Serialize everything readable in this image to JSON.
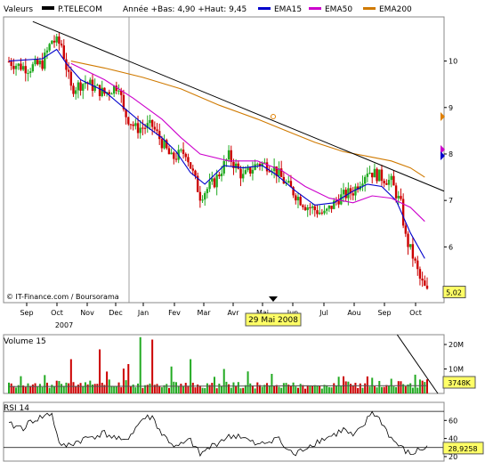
{
  "header": {
    "label": "Valeurs",
    "ticker": "P.TELECOM",
    "stats": "Année +Bas: 4,90 +Haut: 9,45",
    "legend": [
      {
        "name": "EMA15",
        "color": "#0000cc"
      },
      {
        "name": "EMA50",
        "color": "#cc00cc"
      },
      {
        "name": "EMA200",
        "color": "#d07a00"
      }
    ]
  },
  "colors": {
    "up": "#22aa22",
    "down": "#cc0000",
    "bg": "#ffffff",
    "grid": "#bbbbbb",
    "volume_avg": "#555555"
  },
  "credit": "© IT-Finance.com / Boursorama",
  "cursor_date": "29 Mai 2008",
  "chart_data": [
    {
      "type": "candlestick",
      "x_ticks": [
        "Sep",
        "Oct",
        "Nov",
        "Dec",
        "Jan",
        "Fev",
        "Mar",
        "Avr",
        "Mai",
        "Jun",
        "Jul",
        "Aou",
        "Sep",
        "Oct"
      ],
      "x_subtick": "2007",
      "y_ticks": [
        "10",
        "9",
        "8",
        "7",
        "6"
      ],
      "ylim": [
        4.8,
        10.95
      ],
      "last_price_label": "5,02",
      "price_path": [
        [
          0,
          9.99
        ],
        [
          4,
          9.9
        ],
        [
          8,
          9.85
        ],
        [
          14,
          9.95
        ],
        [
          18,
          10.45
        ],
        [
          22,
          10.35
        ],
        [
          26,
          9.4
        ],
        [
          32,
          9.55
        ],
        [
          40,
          9.3
        ],
        [
          46,
          9.5
        ],
        [
          48,
          8.9
        ],
        [
          53,
          8.55
        ],
        [
          60,
          8.6
        ],
        [
          68,
          7.9
        ],
        [
          74,
          8.05
        ],
        [
          80,
          7.1
        ],
        [
          86,
          7.4
        ],
        [
          92,
          7.95
        ],
        [
          98,
          7.5
        ],
        [
          104,
          7.8
        ],
        [
          110,
          7.75
        ],
        [
          116,
          7.35
        ],
        [
          124,
          6.9
        ],
        [
          132,
          6.7
        ],
        [
          138,
          7.05
        ],
        [
          144,
          7.2
        ],
        [
          150,
          7.65
        ],
        [
          156,
          7.5
        ],
        [
          160,
          7.4
        ],
        [
          164,
          6.9
        ],
        [
          166,
          6.2
        ],
        [
          169,
          5.8
        ],
        [
          172,
          5.3
        ],
        [
          175,
          5.02
        ]
      ],
      "series": [
        {
          "name": "EMA15",
          "color": "#0000cc",
          "points": [
            [
              0,
              10.0
            ],
            [
              14,
              10.05
            ],
            [
              20,
              10.25
            ],
            [
              24,
              9.95
            ],
            [
              30,
              9.6
            ],
            [
              40,
              9.35
            ],
            [
              48,
              9.0
            ],
            [
              56,
              8.65
            ],
            [
              64,
              8.35
            ],
            [
              70,
              8.05
            ],
            [
              76,
              7.6
            ],
            [
              82,
              7.35
            ],
            [
              90,
              7.75
            ],
            [
              98,
              7.7
            ],
            [
              106,
              7.75
            ],
            [
              112,
              7.55
            ],
            [
              120,
              7.2
            ],
            [
              128,
              6.9
            ],
            [
              136,
              6.95
            ],
            [
              144,
              7.2
            ],
            [
              150,
              7.35
            ],
            [
              156,
              7.3
            ],
            [
              162,
              7.0
            ],
            [
              168,
              6.3
            ],
            [
              174,
              5.75
            ]
          ]
        },
        {
          "name": "EMA50",
          "color": "#cc00cc",
          "points": [
            [
              26,
              9.95
            ],
            [
              40,
              9.6
            ],
            [
              52,
              9.2
            ],
            [
              64,
              8.75
            ],
            [
              72,
              8.35
            ],
            [
              80,
              8.0
            ],
            [
              92,
              7.85
            ],
            [
              104,
              7.85
            ],
            [
              114,
              7.65
            ],
            [
              124,
              7.3
            ],
            [
              134,
              7.05
            ],
            [
              144,
              6.95
            ],
            [
              152,
              7.1
            ],
            [
              160,
              7.05
            ],
            [
              168,
              6.85
            ],
            [
              174,
              6.55
            ]
          ]
        },
        {
          "name": "EMA200",
          "color": "#d07a00",
          "points": [
            [
              26,
              10.0
            ],
            [
              40,
              9.85
            ],
            [
              56,
              9.65
            ],
            [
              72,
              9.4
            ],
            [
              88,
              9.05
            ],
            [
              104,
              8.75
            ],
            [
              116,
              8.5
            ],
            [
              128,
              8.25
            ],
            [
              140,
              8.05
            ],
            [
              150,
              7.95
            ],
            [
              160,
              7.85
            ],
            [
              168,
              7.7
            ],
            [
              174,
              7.5
            ]
          ]
        }
      ],
      "trendline": [
        [
          10,
          10.85
        ],
        [
          180,
          7.2
        ]
      ]
    },
    {
      "type": "bar",
      "title": "Volume 15",
      "y_ticks": [
        "20M",
        "10M"
      ],
      "ylim": [
        0,
        24
      ],
      "last_value_label": "3748K",
      "profile": [
        [
          0,
          3
        ],
        [
          30,
          4
        ],
        [
          60,
          3.5
        ],
        [
          90,
          3.2
        ],
        [
          120,
          3
        ],
        [
          150,
          3.4
        ],
        [
          175,
          4
        ]
      ],
      "spikes": [
        [
          26,
          14
        ],
        [
          38,
          18
        ],
        [
          50,
          12
        ],
        [
          55,
          23
        ],
        [
          60,
          22
        ],
        [
          68,
          11
        ],
        [
          76,
          14
        ],
        [
          90,
          10
        ],
        [
          100,
          9
        ],
        [
          110,
          8
        ],
        [
          140,
          7
        ],
        [
          160,
          6
        ]
      ],
      "avg_path": [
        [
          0,
          2.8
        ],
        [
          175,
          3.2
        ]
      ],
      "trendline": [
        [
          158,
          24
        ],
        [
          175,
          0
        ]
      ]
    },
    {
      "type": "line",
      "title": "RSI 14",
      "y_ticks": [
        "60",
        "40",
        "20"
      ],
      "ylim": [
        15,
        80
      ],
      "reference_lines": [
        70,
        30
      ],
      "last_value_label": "28,9258",
      "points": [
        [
          0,
          55
        ],
        [
          6,
          52
        ],
        [
          10,
          60
        ],
        [
          14,
          64
        ],
        [
          18,
          68
        ],
        [
          20,
          45
        ],
        [
          22,
          30
        ],
        [
          26,
          34
        ],
        [
          32,
          40
        ],
        [
          40,
          46
        ],
        [
          48,
          36
        ],
        [
          52,
          48
        ],
        [
          56,
          62
        ],
        [
          60,
          64
        ],
        [
          64,
          45
        ],
        [
          70,
          30
        ],
        [
          76,
          38
        ],
        [
          80,
          22
        ],
        [
          84,
          30
        ],
        [
          90,
          40
        ],
        [
          96,
          44
        ],
        [
          100,
          38
        ],
        [
          104,
          32
        ],
        [
          108,
          36
        ],
        [
          112,
          42
        ],
        [
          116,
          28
        ],
        [
          120,
          22
        ],
        [
          124,
          30
        ],
        [
          130,
          38
        ],
        [
          136,
          44
        ],
        [
          140,
          50
        ],
        [
          144,
          42
        ],
        [
          148,
          52
        ],
        [
          152,
          70
        ],
        [
          156,
          58
        ],
        [
          160,
          40
        ],
        [
          164,
          30
        ],
        [
          168,
          22
        ],
        [
          172,
          28
        ],
        [
          175,
          30
        ]
      ]
    }
  ]
}
